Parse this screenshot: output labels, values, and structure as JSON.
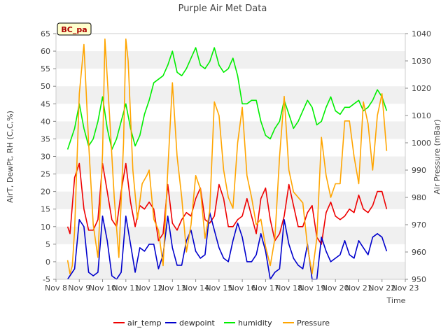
{
  "chart_data": {
    "type": "line",
    "title": "Purple Air Met Data",
    "badge": "BC_pa",
    "xlabel": "Time",
    "ylabel_left": "AirT, DewPt, RH (C,C,%)",
    "ylabel_right": "Air Pressure (mBar)",
    "xlim": [
      8,
      23
    ],
    "ylim_left": [
      -5,
      65
    ],
    "ylim_right": [
      950,
      1040
    ],
    "x_tick_labels": [
      "Nov 8",
      "Nov 9",
      "Nov 10",
      "Nov 11",
      "Nov 12",
      "Nov 13",
      "Nov 14",
      "Nov 15",
      "Nov 16",
      "Nov 17",
      "Nov 18",
      "Nov 19",
      "Nov 20",
      "Nov 21",
      "Nov 22",
      "Nov 23"
    ],
    "y_left_ticks": [
      -5,
      0,
      5,
      10,
      15,
      20,
      25,
      30,
      35,
      40,
      45,
      50,
      55,
      60,
      65
    ],
    "y_right_ticks": [
      950,
      960,
      970,
      980,
      990,
      1000,
      1010,
      1020,
      1030,
      1040
    ],
    "series": [
      {
        "name": "air_temp",
        "color": "#ee0000",
        "axis": "left",
        "x": [
          8.5,
          8.6,
          8.8,
          9.0,
          9.2,
          9.4,
          9.6,
          9.8,
          10.0,
          10.2,
          10.4,
          10.6,
          10.8,
          11.0,
          11.2,
          11.4,
          11.6,
          11.8,
          12.0,
          12.2,
          12.4,
          12.6,
          12.8,
          13.0,
          13.2,
          13.4,
          13.6,
          13.8,
          14.0,
          14.2,
          14.4,
          14.6,
          14.8,
          15.0,
          15.2,
          15.4,
          15.6,
          15.8,
          16.0,
          16.2,
          16.4,
          16.6,
          16.8,
          17.0,
          17.2,
          17.4,
          17.6,
          17.8,
          18.0,
          18.2,
          18.4,
          18.6,
          18.8,
          19.0,
          19.2,
          19.4,
          19.6,
          19.8,
          20.0,
          20.2,
          20.4,
          20.6,
          20.8,
          21.0,
          21.2,
          21.4,
          21.6,
          21.8,
          22.0,
          22.2
        ],
        "y": [
          10,
          8,
          24,
          28,
          15,
          9,
          9,
          12,
          28,
          20,
          12,
          10,
          20,
          28,
          17,
          10,
          16,
          15,
          17,
          15,
          6,
          8,
          22,
          11,
          9,
          12,
          14,
          13,
          18,
          21,
          12,
          11,
          13,
          22,
          18,
          10,
          10,
          12,
          13,
          18,
          13,
          8,
          18,
          21,
          12,
          6,
          8,
          13,
          22,
          16,
          10,
          10,
          14,
          16,
          7,
          5,
          14,
          17,
          13,
          12,
          13,
          15,
          14,
          19,
          15,
          14,
          16,
          20,
          20,
          15
        ]
      },
      {
        "name": "dewpoint",
        "color": "#0000cc",
        "axis": "left",
        "x": [
          8.5,
          8.8,
          9.0,
          9.2,
          9.4,
          9.6,
          9.8,
          10.0,
          10.2,
          10.4,
          10.6,
          10.8,
          11.0,
          11.2,
          11.4,
          11.6,
          11.8,
          12.0,
          12.2,
          12.4,
          12.6,
          12.8,
          13.0,
          13.2,
          13.4,
          13.6,
          13.8,
          14.0,
          14.2,
          14.4,
          14.6,
          14.8,
          15.0,
          15.2,
          15.4,
          15.6,
          15.8,
          16.0,
          16.2,
          16.4,
          16.6,
          16.8,
          17.0,
          17.2,
          17.4,
          17.6,
          17.8,
          18.0,
          18.2,
          18.4,
          18.6,
          18.8,
          19.0,
          19.2,
          19.4,
          19.6,
          19.8,
          20.0,
          20.2,
          20.4,
          20.6,
          20.8,
          21.0,
          21.2,
          21.4,
          21.6,
          21.8,
          22.0,
          22.2
        ],
        "y": [
          -5,
          -2,
          12,
          10,
          -3,
          -4,
          -3,
          13,
          6,
          -4,
          -5,
          -3,
          13,
          5,
          -3,
          4,
          3,
          5,
          5,
          -2,
          2,
          13,
          4,
          -1,
          -1,
          6,
          9,
          3,
          1,
          2,
          14,
          9,
          4,
          1,
          0,
          6,
          11,
          7,
          0,
          0,
          2,
          8,
          3,
          -5,
          -3,
          -2,
          12,
          5,
          1,
          -1,
          -2,
          5,
          -5,
          -5,
          7,
          3,
          0,
          1,
          2,
          6,
          2,
          1,
          6,
          4,
          2,
          7,
          8,
          7,
          3
        ]
      },
      {
        "name": "humidity",
        "color": "#00ee00",
        "axis": "left",
        "x": [
          8.5,
          8.8,
          9.0,
          9.2,
          9.4,
          9.6,
          9.8,
          10.0,
          10.2,
          10.4,
          10.6,
          10.8,
          11.0,
          11.2,
          11.4,
          11.6,
          11.8,
          12.0,
          12.2,
          12.4,
          12.6,
          12.8,
          13.0,
          13.2,
          13.4,
          13.6,
          13.8,
          14.0,
          14.2,
          14.4,
          14.6,
          14.8,
          15.0,
          15.2,
          15.4,
          15.6,
          15.8,
          16.0,
          16.2,
          16.4,
          16.6,
          16.8,
          17.0,
          17.2,
          17.4,
          17.6,
          17.8,
          18.0,
          18.2,
          18.4,
          18.6,
          18.8,
          19.0,
          19.2,
          19.4,
          19.6,
          19.8,
          20.0,
          20.2,
          20.4,
          20.6,
          20.8,
          21.0,
          21.2,
          21.4,
          21.6,
          21.8,
          22.0,
          22.2
        ],
        "y": [
          32,
          38,
          45,
          38,
          33,
          35,
          40,
          47,
          38,
          32,
          35,
          40,
          45,
          38,
          33,
          36,
          42,
          46,
          51,
          52,
          53,
          56,
          60,
          54,
          53,
          55,
          58,
          61,
          56,
          55,
          57,
          61,
          56,
          54,
          55,
          58,
          53,
          45,
          45,
          46,
          46,
          40,
          36,
          35,
          38,
          40,
          46,
          42,
          38,
          40,
          43,
          46,
          44,
          39,
          40,
          44,
          47,
          43,
          42,
          44,
          44,
          45,
          46,
          43,
          44,
          46,
          49,
          47,
          43
        ]
      },
      {
        "name": "Pressure",
        "color": "#ffa500",
        "axis": "right",
        "x": [
          8.5,
          8.6,
          8.7,
          8.8,
          9.0,
          9.2,
          9.4,
          9.6,
          9.8,
          10.0,
          10.1,
          10.3,
          10.5,
          10.7,
          10.9,
          11.0,
          11.1,
          11.3,
          11.5,
          11.7,
          11.9,
          12.0,
          12.2,
          12.4,
          12.6,
          12.8,
          13.0,
          13.2,
          13.4,
          13.6,
          13.8,
          14.0,
          14.2,
          14.4,
          14.6,
          14.8,
          15.0,
          15.2,
          15.4,
          15.6,
          15.8,
          16.0,
          16.2,
          16.4,
          16.6,
          16.8,
          17.0,
          17.2,
          17.4,
          17.6,
          17.8,
          18.0,
          18.2,
          18.4,
          18.6,
          18.8,
          19.0,
          19.2,
          19.4,
          19.6,
          19.8,
          20.0,
          20.2,
          20.4,
          20.6,
          20.8,
          21.0,
          21.2,
          21.4,
          21.6,
          21.8,
          22.0,
          22.2
        ],
        "y": [
          957,
          952,
          955,
          968,
          1018,
          1036,
          1000,
          970,
          958,
          996,
          1038,
          1010,
          980,
          958,
          1000,
          1038,
          1030,
          990,
          972,
          985,
          988,
          990,
          972,
          968,
          955,
          990,
          1022,
          995,
          980,
          960,
          970,
          988,
          983,
          965,
          975,
          1015,
          1010,
          990,
          980,
          976,
          1000,
          1013,
          988,
          980,
          970,
          972,
          962,
          955,
          965,
          995,
          1017,
          990,
          982,
          980,
          978,
          962,
          952,
          965,
          1002,
          988,
          980,
          985,
          985,
          1008,
          1008,
          995,
          985,
          1015,
          1007,
          990,
          1010,
          1018,
          997
        ]
      }
    ],
    "legend": {
      "placement": "bottom-center",
      "entries": [
        "air_temp",
        "dewpoint",
        "humidity",
        "Pressure"
      ]
    },
    "grid": true
  }
}
